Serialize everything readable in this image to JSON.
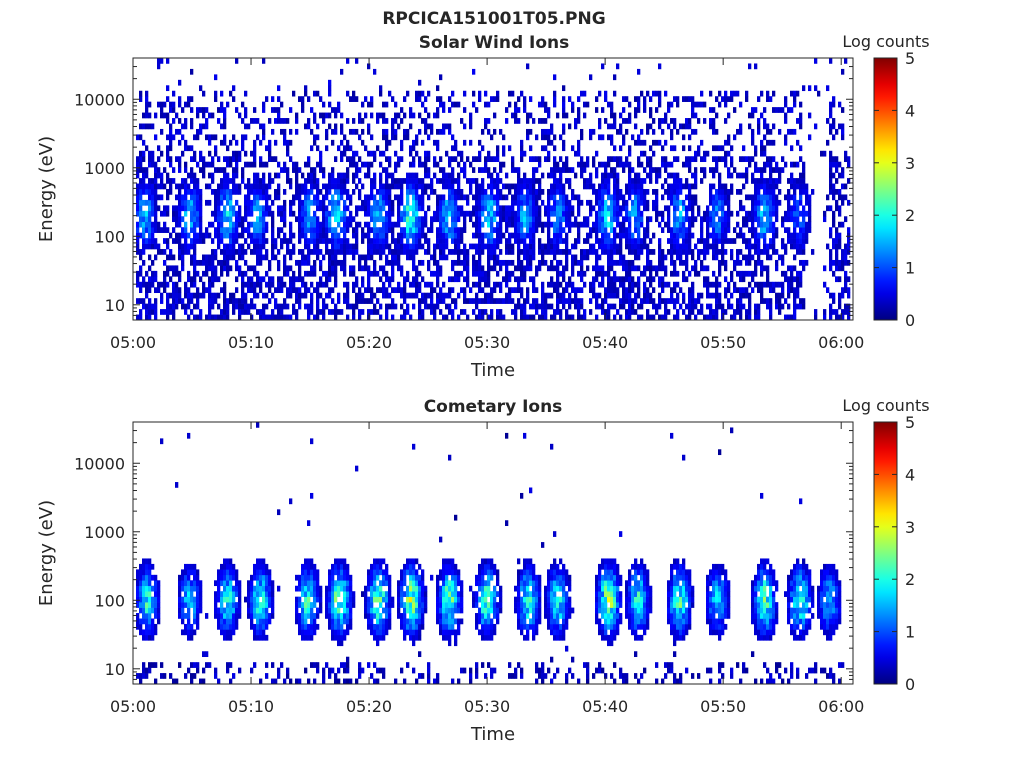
{
  "figure": {
    "title": "RPCICA151001T05.PNG"
  },
  "chart_data": [
    {
      "type": "heatmap",
      "title": "Solar Wind Ions",
      "xlabel": "Time",
      "ylabel": "Energy (eV)",
      "y_scale": "log",
      "ylim": [
        6,
        40000
      ],
      "x_ticks": [
        "05:00",
        "05:10",
        "05:20",
        "05:30",
        "05:40",
        "05:50",
        "06:00"
      ],
      "y_ticks": [
        {
          "value": 10,
          "label": "10"
        },
        {
          "value": 100,
          "label": "100"
        },
        {
          "value": 1000,
          "label": "1000"
        },
        {
          "value": 10000,
          "label": "10000"
        }
      ],
      "colorbar": {
        "title": "Log counts",
        "ticks": [
          "0",
          "1",
          "2",
          "3",
          "4",
          "5"
        ],
        "range": [
          0,
          5
        ],
        "colormap": "jet"
      },
      "xlim_minutes_after_0500": [
        0,
        61
      ],
      "data_extent_minutes_after_0500": [
        0.2,
        60.8
      ],
      "data_gap_minutes_after_0500": [
        57.0,
        59.0
      ],
      "background_level_log_counts": 0.4,
      "burst_times_minutes_after_0500": [
        1.0,
        4.8,
        8.0,
        10.5,
        15.0,
        17.2,
        20.8,
        23.5,
        26.8,
        30.2,
        33.2,
        36.0,
        40.2,
        42.5,
        46.3,
        49.5,
        53.5,
        56.4
      ],
      "burst_peak_log_counts": [
        1.6,
        1.7,
        1.9,
        1.5,
        1.5,
        2.0,
        1.6,
        2.2,
        1.7,
        1.8,
        1.5,
        1.4,
        1.8,
        1.5,
        1.6,
        1.3,
        1.7,
        1.2
      ],
      "burst_center_energy_ev": 200
    },
    {
      "type": "heatmap",
      "title": "Cometary Ions",
      "xlabel": "Time",
      "ylabel": "Energy (eV)",
      "y_scale": "log",
      "ylim": [
        6,
        40000
      ],
      "x_ticks": [
        "05:00",
        "05:10",
        "05:20",
        "05:30",
        "05:40",
        "05:50",
        "06:00"
      ],
      "y_ticks": [
        {
          "value": 10,
          "label": "10"
        },
        {
          "value": 100,
          "label": "100"
        },
        {
          "value": 1000,
          "label": "1000"
        },
        {
          "value": 10000,
          "label": "10000"
        }
      ],
      "colorbar": {
        "title": "Log counts",
        "ticks": [
          "0",
          "1",
          "2",
          "3",
          "4",
          "5"
        ],
        "range": [
          0,
          5
        ],
        "colormap": "jet"
      },
      "xlim_minutes_after_0500": [
        0,
        61
      ],
      "data_extent_minutes_after_0500": [
        0.2,
        60.2
      ],
      "background_level_log_counts": 0.05,
      "burst_times_minutes_after_0500": [
        1.2,
        4.8,
        8.0,
        10.8,
        14.8,
        17.5,
        20.8,
        23.6,
        26.8,
        30.0,
        33.5,
        36.0,
        40.3,
        42.8,
        46.3,
        49.5,
        53.5,
        56.5,
        59.0
      ],
      "burst_peak_log_counts": [
        2.2,
        1.8,
        2.2,
        2.3,
        2.3,
        2.7,
        2.6,
        2.9,
        2.6,
        2.5,
        2.3,
        2.2,
        2.9,
        2.2,
        2.4,
        1.8,
        2.5,
        2.4,
        1.7
      ],
      "burst_center_energy_ev": 100
    }
  ]
}
